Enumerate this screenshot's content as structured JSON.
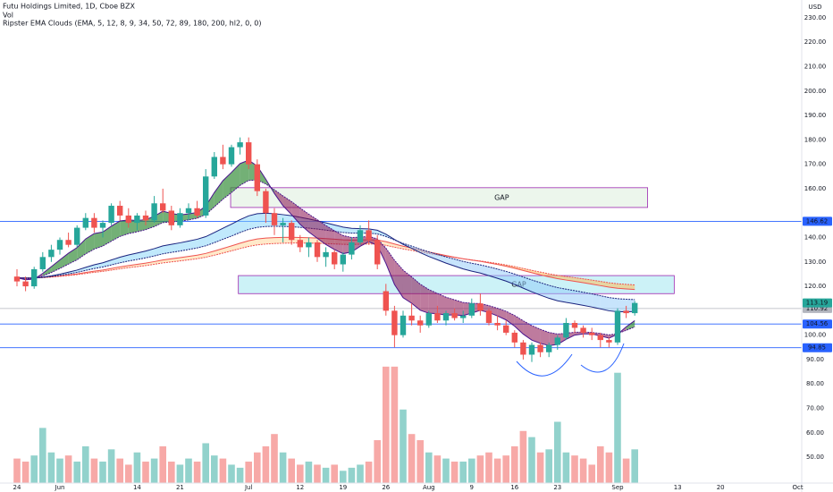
{
  "chart_data": {
    "type": "candlestick",
    "title": "Futu Holdings Limited, 1D, Cboe BZX",
    "volume_label": "Vol",
    "indicator_label": "Ripster EMA Clouds (EMA, 5, 12, 8, 9, 34, 50, 72, 89, 180, 200, hl2, 0, 0)",
    "currency": "USD",
    "up_color": "#26a69a",
    "down_color": "#ef5350",
    "open": [
      124,
      122,
      120,
      127,
      132,
      135,
      139,
      137,
      144,
      148,
      144,
      146,
      153,
      149,
      146,
      149,
      147,
      154,
      151,
      145,
      150,
      152,
      149,
      165,
      173,
      170,
      177,
      179,
      170,
      159,
      150,
      145,
      146,
      139,
      136,
      138,
      132,
      134,
      129,
      133,
      138,
      143,
      139,
      118,
      110,
      100,
      108,
      106,
      104,
      109,
      106,
      109,
      107,
      108,
      113,
      110,
      105,
      104,
      101,
      97,
      92,
      96,
      93,
      96,
      99,
      105,
      103,
      101,
      100,
      98,
      97,
      110,
      109
    ],
    "high": [
      127,
      124,
      128,
      134,
      137,
      140,
      142,
      145,
      150,
      150,
      147,
      154,
      155,
      152,
      150,
      151,
      157,
      160,
      153,
      152,
      154,
      155,
      168,
      175,
      178,
      178,
      181,
      181,
      172,
      160,
      152,
      148,
      147,
      141,
      140,
      139,
      136,
      135,
      134,
      140,
      145,
      147,
      141,
      121,
      112,
      110,
      113,
      108,
      110,
      112,
      110,
      111,
      110,
      115,
      117,
      111,
      108,
      106,
      102,
      98,
      97,
      97,
      97,
      100,
      107,
      106,
      104,
      103,
      101,
      99,
      111,
      112,
      114
    ],
    "low": [
      120,
      118,
      119,
      126,
      130,
      133,
      136,
      136,
      143,
      142,
      140,
      145,
      147,
      144,
      143,
      145,
      146,
      150,
      143,
      144,
      147,
      148,
      148,
      164,
      168,
      169,
      174,
      168,
      157,
      146,
      141,
      138,
      137,
      134,
      132,
      130,
      128,
      127,
      126,
      131,
      137,
      137,
      127,
      108,
      95,
      99,
      104,
      101,
      103,
      105,
      104,
      106,
      105,
      107,
      108,
      104,
      102,
      100,
      95,
      90,
      89,
      91,
      91,
      94,
      98,
      101,
      99,
      98,
      95,
      95,
      96,
      107,
      108
    ],
    "close": [
      122,
      120,
      127,
      132,
      135,
      139,
      137,
      144,
      148,
      144,
      146,
      153,
      149,
      146,
      149,
      147,
      154,
      151,
      145,
      150,
      152,
      149,
      165,
      173,
      170,
      177,
      179,
      170,
      159,
      150,
      145,
      146,
      139,
      136,
      138,
      132,
      134,
      129,
      133,
      138,
      143,
      139,
      129,
      110,
      100,
      108,
      106,
      104,
      109,
      106,
      109,
      107,
      108,
      113,
      110,
      105,
      104,
      101,
      97,
      92,
      96,
      93,
      96,
      99,
      105,
      103,
      101,
      100,
      98,
      97,
      110,
      109,
      113.19
    ],
    "volume": [
      8,
      7,
      9,
      18,
      10,
      8,
      9,
      7,
      12,
      8,
      7,
      11,
      8,
      6,
      10,
      7,
      8,
      12,
      7,
      6,
      8,
      7,
      13,
      9,
      8,
      6,
      5,
      7,
      10,
      12,
      16,
      10,
      8,
      6,
      7,
      6,
      5,
      6,
      4,
      5,
      6,
      7,
      14,
      38,
      38,
      24,
      16,
      14,
      10,
      9,
      8,
      7,
      7,
      8,
      9,
      10,
      8,
      9,
      12,
      17,
      15,
      10,
      11,
      20,
      10,
      9,
      8,
      6,
      12,
      10,
      36,
      8,
      11
    ],
    "xlim": [
      -1.98,
      91.46
    ],
    "xticks": [
      {
        "value": 0,
        "label": "24"
      },
      {
        "value": 5,
        "label": "Jun"
      },
      {
        "value": 14,
        "label": "14"
      },
      {
        "value": 19,
        "label": "21"
      },
      {
        "value": 27,
        "label": "Jul"
      },
      {
        "value": 33,
        "label": "12"
      },
      {
        "value": 38,
        "label": "19"
      },
      {
        "value": 43,
        "label": "26"
      },
      {
        "value": 48,
        "label": "Aug"
      },
      {
        "value": 53,
        "label": "9"
      },
      {
        "value": 58,
        "label": "16"
      },
      {
        "value": 63,
        "label": "23"
      },
      {
        "value": 70,
        "label": "Sep"
      },
      {
        "value": 77,
        "label": "13"
      },
      {
        "value": 82,
        "label": "20"
      },
      {
        "value": 91,
        "label": "Oct"
      }
    ],
    "ylim": [
      39.4,
      237.3
    ],
    "yticks": [
      {
        "value": 230,
        "label": "230.00"
      },
      {
        "value": 220,
        "label": "220.00"
      },
      {
        "value": 210,
        "label": "210.00"
      },
      {
        "value": 200,
        "label": "200.00"
      },
      {
        "value": 190,
        "label": "190.00"
      },
      {
        "value": 180,
        "label": "180.00"
      },
      {
        "value": 170,
        "label": "170.00"
      },
      {
        "value": 160,
        "label": "160.00"
      },
      {
        "value": 140,
        "label": "140.00"
      },
      {
        "value": 130,
        "label": "130.00"
      },
      {
        "value": 120,
        "label": "120.00"
      },
      {
        "value": 100,
        "label": "100.00"
      },
      {
        "value": 90,
        "label": "90.00"
      },
      {
        "value": 80,
        "label": "80.00"
      },
      {
        "value": 70,
        "label": "70.00"
      },
      {
        "value": 60,
        "label": "60.00"
      },
      {
        "value": 50,
        "label": "50.00"
      }
    ],
    "y2lim": [
      0,
      40
    ],
    "grid": true,
    "hlines": [
      {
        "value": 146.62,
        "color": "#2962ff"
      },
      {
        "value": 110.92,
        "color": "#b2b5be"
      },
      {
        "value": 104.56,
        "color": "#2962ff"
      },
      {
        "value": 94.85,
        "color": "#2962ff"
      }
    ],
    "zones": [
      {
        "label": "GAP",
        "range": [
          152.3,
          160.4
        ],
        "xrange": [
          24.9,
          73.5
        ],
        "fill": "rgba(200,230,201,0.35)",
        "stroke": "#9c27b0"
      },
      {
        "label": "GAP",
        "range": [
          117,
          124.4
        ],
        "xrange": [
          25.8,
          76.6
        ],
        "fill": "rgba(128,222,234,0.4)",
        "stroke": "#9c27b0"
      }
    ]
  }
}
